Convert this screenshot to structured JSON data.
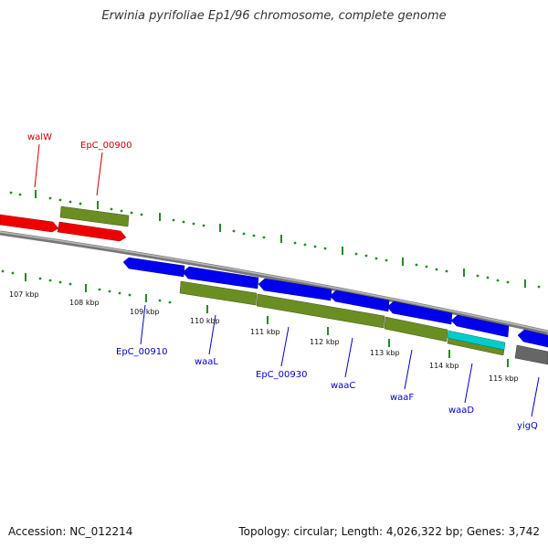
{
  "title": "Erwinia pyrifoliae Ep1/96 chromosome, complete genome",
  "footer": {
    "accession": "Accession: NC_012214",
    "stats": "Topology: circular; Length: 4,026,322 bp; Genes: 3,742"
  },
  "colors": {
    "forward_gene_label": "#cc0000",
    "reverse_gene_label": "#0000cc",
    "red_gene": "#ee0000",
    "olive_gene": "#6b8e23",
    "blue_gene": "#0000ee",
    "cyan_gene": "#00cccc",
    "gray_gene": "#666666",
    "tick_color": "#228b22",
    "backbone": "#888888"
  },
  "scale_labels": [
    "107 kbp",
    "108 kbp",
    "109 kbp",
    "110 kbp",
    "111 kbp",
    "112 kbp",
    "113 kbp",
    "114 kbp",
    "115 kbp"
  ],
  "forward_gene_labels": [
    "walW",
    "EpC_00900"
  ],
  "reverse_gene_labels": [
    "EpC_00910",
    "waaL",
    "EpC_00930",
    "waaC",
    "waaF",
    "waaD",
    "yigQ"
  ]
}
